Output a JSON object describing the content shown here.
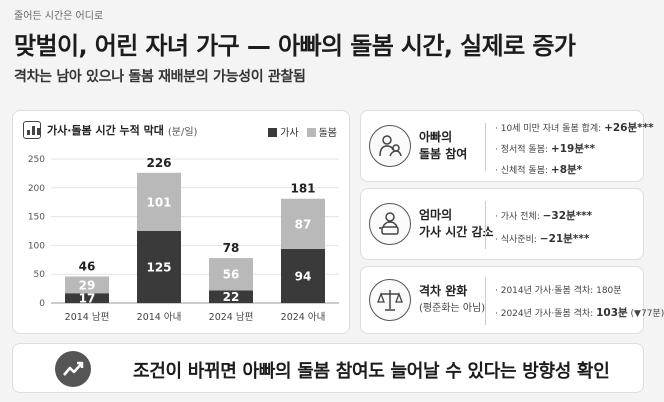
{
  "header": {
    "kicker": "줄어든 시간은 어디로",
    "title": "맞벌이, 어린 자녀 가구 — 아빠의 돌봄 시간, 실제로 증가",
    "subtitle": "격차는 남아 있으나 돌봄 재배분의 가능성이 관찰됨"
  },
  "chart_data": {
    "type": "bar",
    "stacked": true,
    "title": "가사·돌봄 시간 누적 막대",
    "unit": "(분/일)",
    "categories": [
      "2014 남편",
      "2014 아내",
      "2024 남편",
      "2024 아내"
    ],
    "series": [
      {
        "name": "가사",
        "values": [
          17,
          125,
          22,
          94
        ],
        "color": "#3a3a3a"
      },
      {
        "name": "돌봄",
        "values": [
          29,
          101,
          56,
          87
        ],
        "color": "#b9b9b9"
      }
    ],
    "totals": [
      46,
      226,
      78,
      181
    ],
    "ylim": [
      0,
      250
    ],
    "yticks": [
      0,
      50,
      100,
      150,
      200,
      250
    ],
    "grid": true,
    "legend_position": "top-right"
  },
  "cards": [
    {
      "icon": "father-childcare-icon",
      "label_line1": "아빠의",
      "label_line2": "돌봄 참여",
      "details": [
        {
          "label": "10세 미만 자녀 돌봄 합계:",
          "value": "+26분***"
        },
        {
          "label": "정서적 돌봄:",
          "value": "+19분**"
        },
        {
          "label": "신체적 돌봄:",
          "value": "+8분*"
        }
      ]
    },
    {
      "icon": "mother-housework-icon",
      "label_line1": "엄마의",
      "label_line2": "가사 시간 감소",
      "details": [
        {
          "label": "가사 전체:",
          "value": "−32분***"
        },
        {
          "label": "식사준비:",
          "value": "−21분***"
        }
      ]
    },
    {
      "icon": "balance-scale-icon",
      "label_line1": "격차 완화",
      "label_line2": "(평준화는 아님)",
      "details": [
        {
          "label": "2014년 가사·돌봄 격차:",
          "value": "180분"
        },
        {
          "label": "2024년 가사·돌봄 격차:",
          "value": "103분",
          "note": "(▼77분)"
        }
      ]
    }
  ],
  "banner": {
    "icon": "trend-up-icon",
    "text": "조건이 바뀌면 아빠의 돌봄 참여도 늘어날 수 있다는 방향성 확인"
  }
}
